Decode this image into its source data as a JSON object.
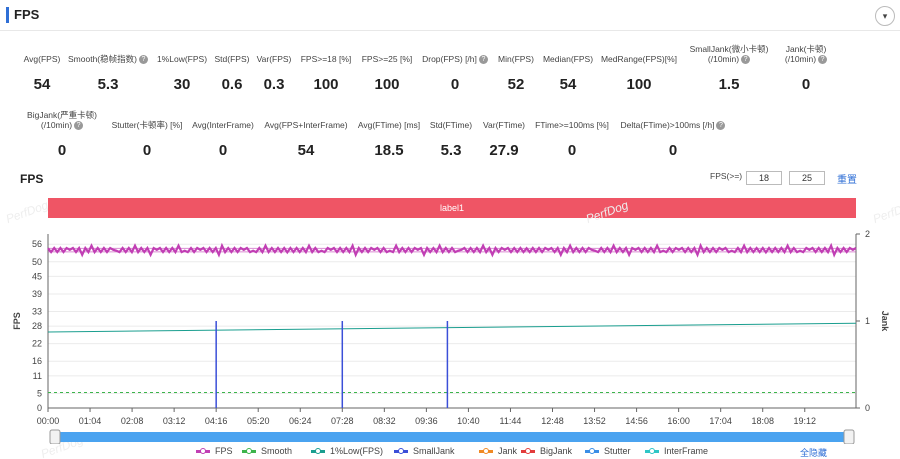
{
  "header": {
    "title": "FPS",
    "collapse_icon": "▾"
  },
  "stats_row1": [
    {
      "label": "Avg(FPS)",
      "value": "54",
      "help": false
    },
    {
      "label": "Smooth(稳帧指数)",
      "value": "5.3",
      "help": true
    },
    {
      "label": "1%Low(FPS)",
      "value": "30",
      "help": false
    },
    {
      "label": "Std(FPS)",
      "value": "0.6",
      "help": false
    },
    {
      "label": "Var(FPS)",
      "value": "0.3",
      "help": false
    },
    {
      "label": "FPS>=18 [%]",
      "value": "100",
      "help": false
    },
    {
      "label": "FPS>=25 [%]",
      "value": "100",
      "help": false
    },
    {
      "label": "Drop(FPS) [/h]",
      "value": "0",
      "help": true
    },
    {
      "label": "Min(FPS)",
      "value": "52",
      "help": false
    },
    {
      "label": "Median(FPS)",
      "value": "54",
      "help": false
    },
    {
      "label": "MedRange(FPS)[%]",
      "value": "100",
      "help": false
    },
    {
      "label": "SmallJank(微小卡顿)",
      "label2": "(/10min)",
      "value": "1.5",
      "help": true
    },
    {
      "label": "Jank(卡顿)",
      "label2": "(/10min)",
      "value": "0",
      "help": true
    }
  ],
  "stats_row2": [
    {
      "label": "BigJank(严重卡顿)",
      "label2": "(/10min)",
      "value": "0",
      "help": true
    },
    {
      "label": "Stutter(卡顿率) [%]",
      "value": "0",
      "help": false
    },
    {
      "label": "Avg(InterFrame)",
      "value": "0",
      "help": false
    },
    {
      "label": "Avg(FPS+InterFrame)",
      "value": "54",
      "help": false
    },
    {
      "label": "Avg(FTime) [ms]",
      "value": "18.5",
      "help": false
    },
    {
      "label": "Std(FTime)",
      "value": "5.3",
      "help": false
    },
    {
      "label": "Var(FTime)",
      "value": "27.9",
      "help": false
    },
    {
      "label": "FTime>=100ms [%]",
      "value": "0",
      "help": false
    },
    {
      "label": "Delta(FTime)>100ms [/h]",
      "value": "0",
      "help": true
    }
  ],
  "chart_section": {
    "title": "FPS",
    "filter_label": "FPS(>=)",
    "threshold1": "18",
    "threshold2": "25",
    "reset_label": "重置",
    "band_label": "label1",
    "watermark": "PerfDog",
    "hide_all_label": "全隐藏"
  },
  "chart_data": {
    "type": "line",
    "ylabel": "FPS",
    "ylabel_right": "Jank",
    "y_ticks": [
      0,
      5,
      11,
      16,
      22,
      28,
      33,
      39,
      45,
      50,
      56
    ],
    "ylim": [
      0,
      59.5
    ],
    "y2_ticks": [
      0,
      1,
      2
    ],
    "y2lim": [
      0,
      2
    ],
    "x_ticks": [
      "00:00",
      "01:04",
      "02:08",
      "03:12",
      "04:16",
      "05:20",
      "06:24",
      "07:28",
      "08:32",
      "09:36",
      "10:40",
      "11:44",
      "12:48",
      "13:52",
      "14:56",
      "16:00",
      "17:04",
      "18:08",
      "19:12"
    ],
    "x_range_seconds": [
      0,
      1230
    ],
    "grid": true,
    "legend_position": "bottom",
    "series": [
      {
        "name": "FPS",
        "color": "#c13fb4",
        "mean": 54,
        "min": 52,
        "max": 56
      },
      {
        "name": "Smooth",
        "color": "#3cb44b",
        "mean": 5.3
      },
      {
        "name": "1%Low(FPS)",
        "color": "#1a9e8f",
        "start": 26,
        "end": 29
      },
      {
        "name": "SmallJank",
        "color": "#3b4fd8",
        "events_time": [
          "04:16",
          "07:28",
          "10:08"
        ],
        "events_value": [
          1,
          1,
          1
        ]
      },
      {
        "name": "Jank",
        "color": "#f08a24"
      },
      {
        "name": "BigJank",
        "color": "#e23b3b"
      },
      {
        "name": "Stutter",
        "color": "#3a8ee6"
      },
      {
        "name": "InterFrame",
        "color": "#2fc6c6"
      }
    ]
  }
}
